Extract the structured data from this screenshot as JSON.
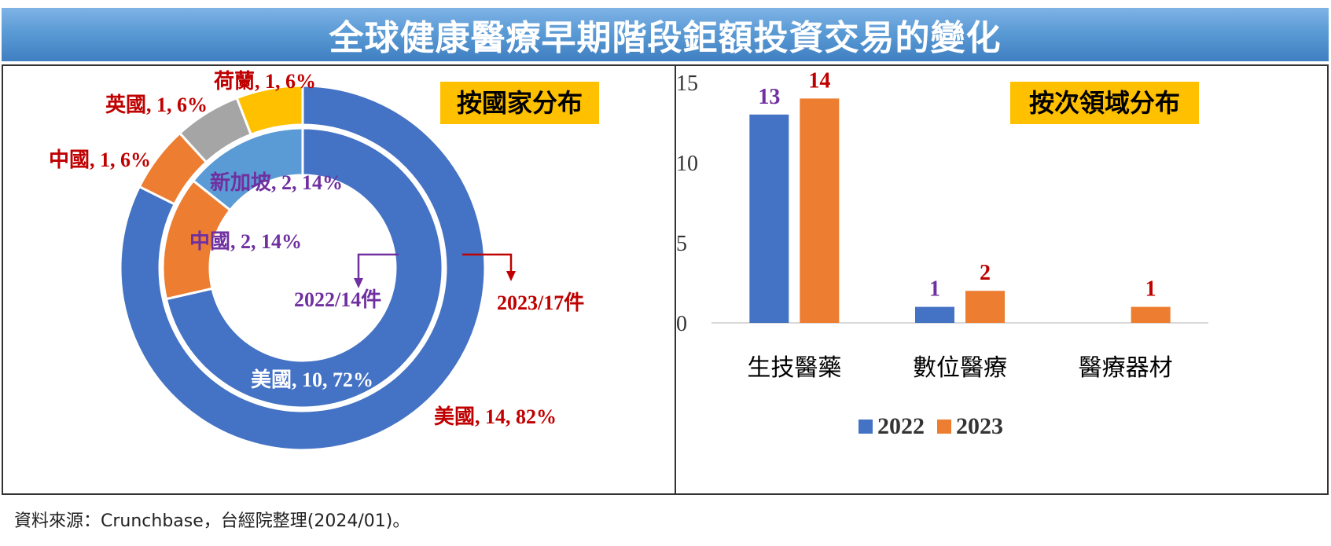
{
  "title": "全球健康醫療早期階段鉅額投資交易的變化",
  "source_note": "資料來源：Crunchbase，台經院整理(2024/01)。",
  "chart_data": [
    {
      "type": "pie",
      "subtype": "donut",
      "title": "按國家分布",
      "colors": {
        "美國": "#4472c4",
        "中國": "#ed7d31",
        "英國": "#a5a5a5",
        "荷蘭": "#ffc000",
        "新加坡": "#5b9bd5"
      },
      "rings": [
        {
          "ring": "inner",
          "label": "2022/14件",
          "total": 14,
          "slices": [
            {
              "name": "美國",
              "value": 10,
              "label": "美國, 10, 72%"
            },
            {
              "name": "中國",
              "value": 2,
              "label": "中國, 2, 14%"
            },
            {
              "name": "新加坡",
              "value": 2,
              "label": "新加坡, 2, 14%"
            }
          ]
        },
        {
          "ring": "outer",
          "label": "2023/17件",
          "total": 17,
          "slices": [
            {
              "name": "美國",
              "value": 14,
              "label": "美國, 14, 82%"
            },
            {
              "name": "中國",
              "value": 1,
              "label": "中國, 1, 6%"
            },
            {
              "name": "英國",
              "value": 1,
              "label": "英國, 1, 6%"
            },
            {
              "name": "荷蘭",
              "value": 1,
              "label": "荷蘭, 1, 6%"
            }
          ]
        }
      ]
    },
    {
      "type": "bar",
      "title": "按次領域分布",
      "categories": [
        "生技醫藥",
        "數位醫療",
        "醫療器材"
      ],
      "series": [
        {
          "name": "2022",
          "color": "#4472c4",
          "values": [
            13,
            1,
            0
          ],
          "labels": [
            "13",
            "1",
            ""
          ]
        },
        {
          "name": "2023",
          "color": "#ed7d31",
          "values": [
            14,
            2,
            1
          ],
          "labels": [
            "14",
            "2",
            "1"
          ]
        }
      ],
      "ylim": [
        0,
        15
      ],
      "yticks": [
        "0",
        "5",
        "10",
        "15"
      ],
      "grid": false,
      "legend": "bottom"
    }
  ]
}
